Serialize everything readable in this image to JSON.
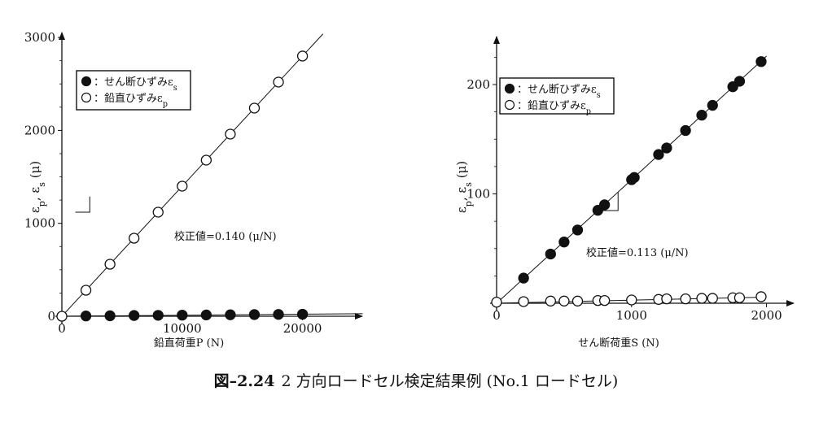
{
  "caption": {
    "number": "図–2.24",
    "text": "2 方向ロードセル検定結果例 (No.1 ロードセル)"
  },
  "chart_data": [
    {
      "type": "scatter",
      "xlabel": "鉛直荷重P (N)",
      "ylabel": "ε_p, ε_s (μ)",
      "xlim": [
        0,
        25000
      ],
      "ylim": [
        0,
        3000
      ],
      "xticks": [
        0,
        10000,
        20000
      ],
      "yticks": [
        0,
        1000,
        2000,
        3000
      ],
      "grid": false,
      "legend_position": "top-left",
      "annotation": "校正値=0.140 (μ/N)",
      "series": [
        {
          "name": "：せん断ひずみε_s",
          "marker": "filled-circle",
          "x": [
            2000,
            4000,
            6000,
            8000,
            10000,
            12000,
            14000,
            16000,
            18000,
            20000
          ],
          "y": [
            3,
            5,
            8,
            10,
            12,
            14,
            16,
            18,
            20,
            22
          ]
        },
        {
          "name": "：鉛直ひずみε_p",
          "marker": "open-circle",
          "x": [
            0,
            2000,
            4000,
            6000,
            8000,
            10000,
            12000,
            14000,
            16000,
            18000,
            20000
          ],
          "y": [
            0,
            280,
            560,
            840,
            1120,
            1400,
            1680,
            1960,
            2240,
            2520,
            2800
          ]
        }
      ],
      "fit_lines": [
        {
          "slope": 0.14,
          "x_range": [
            0,
            21700
          ]
        },
        {
          "slope": 0.0011,
          "x_range": [
            0,
            25000
          ]
        }
      ]
    },
    {
      "type": "scatter",
      "xlabel": "せん断荷重S (N)",
      "ylabel": "ε_p, ε_s (μ)",
      "xlim": [
        0,
        2000
      ],
      "ylim": [
        0,
        230
      ],
      "xticks": [
        0,
        1000,
        2000
      ],
      "yticks": [
        100,
        200
      ],
      "grid": false,
      "legend_position": "top-left",
      "annotation": "校正値=0.113 (μ/N)",
      "series": [
        {
          "name": "：せん断ひずみε_s",
          "marker": "filled-circle",
          "x": [
            200,
            400,
            500,
            600,
            750,
            800,
            1000,
            1020,
            1200,
            1260,
            1400,
            1520,
            1600,
            1750,
            1800,
            1960
          ],
          "y": [
            23,
            45,
            56,
            67,
            85,
            90,
            113,
            115,
            136,
            142,
            158,
            172,
            181,
            198,
            203,
            221
          ]
        },
        {
          "name": "：鉛直ひずみε_p",
          "marker": "open-circle",
          "x": [
            0,
            200,
            400,
            500,
            600,
            750,
            800,
            1000,
            1200,
            1260,
            1400,
            1520,
            1600,
            1750,
            1800,
            1960
          ],
          "y": [
            1,
            1.5,
            2,
            2,
            2,
            2.5,
            2.5,
            3,
            3.5,
            4,
            4,
            4.5,
            4.5,
            5,
            5,
            6
          ]
        }
      ],
      "fit_lines": [
        {
          "slope": 0.113,
          "x_range": [
            0,
            2000
          ]
        },
        {
          "slope": 0.0028,
          "x_range": [
            0,
            2000
          ]
        }
      ]
    }
  ]
}
